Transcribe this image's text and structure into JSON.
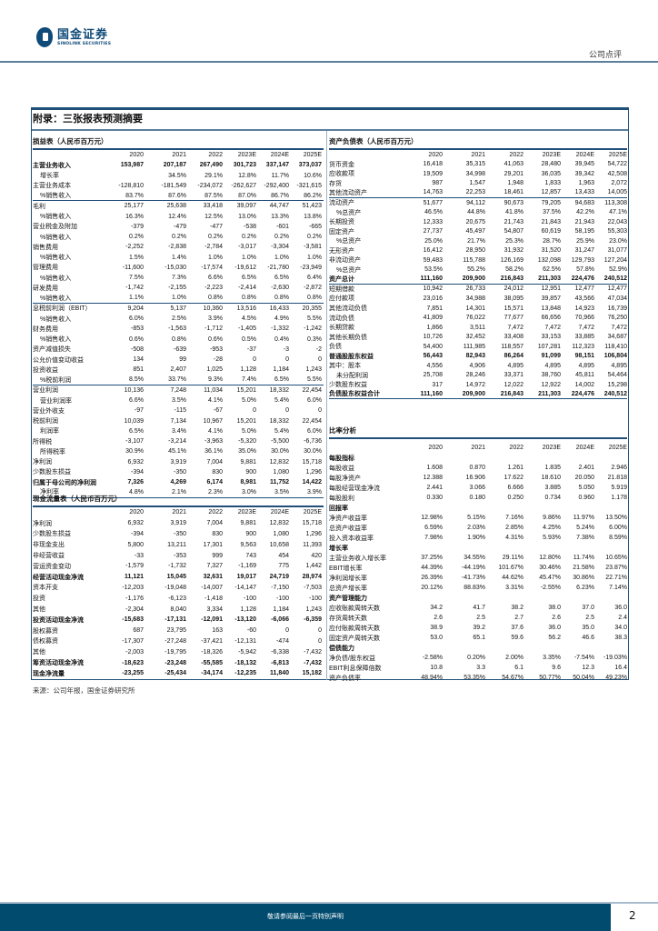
{
  "header": {
    "logo_cn": "国金证券",
    "logo_en": "SINOLINK SECURITIES",
    "doc_type": "公司点评"
  },
  "appendix_title": "附录：三张报表预测摘要",
  "years": [
    "2020",
    "2021",
    "2022",
    "2023E",
    "2024E",
    "2025E"
  ],
  "income": {
    "title": "损益表（人民币百万元）",
    "rows": [
      {
        "label": "主营业务收入",
        "values": [
          "153,987",
          "207,187",
          "267,490",
          "301,723",
          "337,147",
          "373,037"
        ]
      },
      {
        "label": "增长率",
        "values": [
          "",
          "34.5%",
          "29.1%",
          "12.8%",
          "11.7%",
          "10.6%"
        ]
      },
      {
        "label": "主营业务成本",
        "values": [
          "-128,810",
          "-181,549",
          "-234,072",
          "-262,627",
          "-292,400",
          "-321,615"
        ]
      },
      {
        "label": "%销售收入",
        "values": [
          "83.7%",
          "87.6%",
          "87.5%",
          "87.0%",
          "86.7%",
          "86.2%"
        ]
      },
      {
        "label": "毛利",
        "values": [
          "25,177",
          "25,638",
          "33,418",
          "39,097",
          "44,747",
          "51,423"
        ]
      },
      {
        "label": "%销售收入",
        "values": [
          "16.3%",
          "12.4%",
          "12.5%",
          "13.0%",
          "13.3%",
          "13.8%"
        ]
      },
      {
        "label": "营业税金及附加",
        "values": [
          "-379",
          "-479",
          "-477",
          "-538",
          "-601",
          "-665"
        ]
      },
      {
        "label": "%销售收入",
        "values": [
          "0.2%",
          "0.2%",
          "0.2%",
          "0.2%",
          "0.2%",
          "0.2%"
        ]
      },
      {
        "label": "销售费用",
        "values": [
          "-2,252",
          "-2,838",
          "-2,784",
          "-3,017",
          "-3,304",
          "-3,581"
        ]
      },
      {
        "label": "%销售收入",
        "values": [
          "1.5%",
          "1.4%",
          "1.0%",
          "1.0%",
          "1.0%",
          "1.0%"
        ]
      },
      {
        "label": "管理费用",
        "values": [
          "-11,600",
          "-15,030",
          "-17,574",
          "-19,612",
          "-21,780",
          "-23,949"
        ]
      },
      {
        "label": "%销售收入",
        "values": [
          "7.5%",
          "7.3%",
          "6.6%",
          "6.5%",
          "6.5%",
          "6.4%"
        ]
      },
      {
        "label": "研发费用",
        "values": [
          "-1,742",
          "-2,155",
          "-2,223",
          "-2,414",
          "-2,630",
          "-2,872"
        ]
      },
      {
        "label": "%销售收入",
        "values": [
          "1.1%",
          "1.0%",
          "0.8%",
          "0.8%",
          "0.8%",
          "0.8%"
        ]
      },
      {
        "label": "息税前利润（EBIT）",
        "values": [
          "9,204",
          "5,137",
          "10,360",
          "13,516",
          "16,433",
          "20,355"
        ]
      },
      {
        "label": "%销售收入",
        "values": [
          "6.0%",
          "2.5%",
          "3.9%",
          "4.5%",
          "4.9%",
          "5.5%"
        ]
      },
      {
        "label": "财务费用",
        "values": [
          "-853",
          "-1,563",
          "-1,712",
          "-1,405",
          "-1,332",
          "-1,242"
        ]
      },
      {
        "label": "%销售收入",
        "values": [
          "0.6%",
          "0.8%",
          "0.6%",
          "0.5%",
          "0.4%",
          "0.3%"
        ]
      },
      {
        "label": "资产减值损失",
        "values": [
          "-508",
          "-639",
          "-953",
          "-37",
          "-3",
          "-2"
        ]
      },
      {
        "label": "公允价值变动收益",
        "values": [
          "134",
          "99",
          "-28",
          "0",
          "0",
          "0"
        ]
      },
      {
        "label": "投资收益",
        "values": [
          "851",
          "2,407",
          "1,025",
          "1,128",
          "1,184",
          "1,243"
        ]
      },
      {
        "label": "%税前利润",
        "values": [
          "8.5%",
          "33.7%",
          "9.3%",
          "7.4%",
          "6.5%",
          "5.5%"
        ]
      },
      {
        "label": "营业利润",
        "values": [
          "10,136",
          "7,248",
          "11,034",
          "15,201",
          "18,332",
          "22,454"
        ]
      },
      {
        "label": "营业利润率",
        "values": [
          "6.6%",
          "3.5%",
          "4.1%",
          "5.0%",
          "5.4%",
          "6.0%"
        ]
      },
      {
        "label": "营业外收支",
        "values": [
          "-97",
          "-115",
          "-67",
          "0",
          "0",
          "0"
        ]
      },
      {
        "label": "税前利润",
        "values": [
          "10,039",
          "7,134",
          "10,967",
          "15,201",
          "18,332",
          "22,454"
        ]
      },
      {
        "label": "利润率",
        "values": [
          "6.5%",
          "3.4%",
          "4.1%",
          "5.0%",
          "5.4%",
          "6.0%"
        ]
      },
      {
        "label": "所得税",
        "values": [
          "-3,107",
          "-3,214",
          "-3,963",
          "-5,320",
          "-5,500",
          "-6,736"
        ]
      },
      {
        "label": "所得税率",
        "values": [
          "30.9%",
          "45.1%",
          "36.1%",
          "35.0%",
          "30.0%",
          "30.0%"
        ]
      },
      {
        "label": "净利润",
        "values": [
          "6,932",
          "3,919",
          "7,004",
          "9,881",
          "12,832",
          "15,718"
        ]
      },
      {
        "label": "少数股东损益",
        "values": [
          "-394",
          "-350",
          "830",
          "900",
          "1,080",
          "1,296"
        ]
      },
      {
        "label": "归属于母公司的净利润",
        "values": [
          "7,326",
          "4,269",
          "6,174",
          "8,981",
          "11,752",
          "14,422"
        ]
      },
      {
        "label": "净利率",
        "values": [
          "4.8%",
          "2.1%",
          "2.3%",
          "3.0%",
          "3.5%",
          "3.9%"
        ]
      }
    ]
  },
  "balance": {
    "title": "资产负债表（人民币百万元）",
    "rows": [
      {
        "label": "货币资金",
        "values": [
          "16,418",
          "35,315",
          "41,063",
          "28,480",
          "39,945",
          "54,722"
        ]
      },
      {
        "label": "应收款项",
        "values": [
          "19,509",
          "34,998",
          "29,201",
          "36,035",
          "39,342",
          "42,508"
        ]
      },
      {
        "label": "存货",
        "values": [
          "987",
          "1,547",
          "1,948",
          "1,833",
          "1,963",
          "2,072"
        ]
      },
      {
        "label": "其他流动资产",
        "values": [
          "14,763",
          "22,253",
          "18,461",
          "12,857",
          "13,433",
          "14,005"
        ]
      },
      {
        "label": "流动资产",
        "values": [
          "51,677",
          "94,112",
          "90,673",
          "79,205",
          "94,683",
          "113,308"
        ]
      },
      {
        "label": "%总资产",
        "values": [
          "46.5%",
          "44.8%",
          "41.8%",
          "37.5%",
          "42.2%",
          "47.1%"
        ]
      },
      {
        "label": "长期投资",
        "values": [
          "12,333",
          "20,675",
          "21,743",
          "21,843",
          "21,943",
          "22,043"
        ]
      },
      {
        "label": "固定资产",
        "values": [
          "27,737",
          "45,497",
          "54,807",
          "60,619",
          "58,195",
          "55,303"
        ]
      },
      {
        "label": "%总资产",
        "values": [
          "25.0%",
          "21.7%",
          "25.3%",
          "28.7%",
          "25.9%",
          "23.0%"
        ]
      },
      {
        "label": "无形资产",
        "values": [
          "16,412",
          "28,950",
          "31,932",
          "31,520",
          "31,247",
          "31,077"
        ]
      },
      {
        "label": "非流动资产",
        "values": [
          "59,483",
          "115,788",
          "126,169",
          "132,098",
          "129,793",
          "127,204"
        ]
      },
      {
        "label": "%总资产",
        "values": [
          "53.5%",
          "55.2%",
          "58.2%",
          "62.5%",
          "57.8%",
          "52.9%"
        ]
      },
      {
        "label": "资产总计",
        "values": [
          "111,160",
          "209,900",
          "216,843",
          "211,303",
          "224,476",
          "240,512"
        ]
      },
      {
        "label": "短期借款",
        "values": [
          "10,942",
          "26,733",
          "24,012",
          "12,951",
          "12,477",
          "12,477"
        ]
      },
      {
        "label": "应付款项",
        "values": [
          "23,016",
          "34,988",
          "38,095",
          "39,857",
          "43,566",
          "47,034"
        ]
      },
      {
        "label": "其他流动负债",
        "values": [
          "7,851",
          "14,301",
          "15,571",
          "13,848",
          "14,923",
          "16,739"
        ]
      },
      {
        "label": "流动负债",
        "values": [
          "41,809",
          "76,022",
          "77,677",
          "66,656",
          "70,966",
          "76,250"
        ]
      },
      {
        "label": "长期贷款",
        "values": [
          "1,866",
          "3,511",
          "7,472",
          "7,472",
          "7,472",
          "7,472"
        ]
      },
      {
        "label": "其他长期负债",
        "values": [
          "10,726",
          "32,452",
          "33,408",
          "33,153",
          "33,885",
          "34,687"
        ]
      },
      {
        "label": "负债",
        "values": [
          "54,400",
          "111,985",
          "118,557",
          "107,281",
          "112,323",
          "118,410"
        ]
      },
      {
        "label": "普通股股东权益",
        "values": [
          "56,443",
          "82,943",
          "86,264",
          "91,099",
          "98,151",
          "106,804"
        ]
      },
      {
        "label": "其中：股本",
        "values": [
          "4,556",
          "4,906",
          "4,895",
          "4,895",
          "4,895",
          "4,895"
        ]
      },
      {
        "label": "未分配利润",
        "values": [
          "25,708",
          "28,246",
          "33,371",
          "38,760",
          "45,811",
          "54,464"
        ]
      },
      {
        "label": "少数股东权益",
        "values": [
          "317",
          "14,972",
          "12,022",
          "12,922",
          "14,002",
          "15,298"
        ]
      },
      {
        "label": "负债股东权益合计",
        "values": [
          "111,160",
          "209,900",
          "216,843",
          "211,303",
          "224,476",
          "240,512"
        ]
      }
    ]
  },
  "ratios": {
    "title": "比率分析",
    "rows": [
      {
        "label": "每股指标",
        "values": [
          "",
          "",
          "",
          "",
          "",
          ""
        ]
      },
      {
        "label": "每股收益",
        "values": [
          "1.608",
          "0.870",
          "1.261",
          "1.835",
          "2.401",
          "2.946"
        ]
      },
      {
        "label": "每股净资产",
        "values": [
          "12.388",
          "16.906",
          "17.622",
          "18.610",
          "20.050",
          "21.818"
        ]
      },
      {
        "label": "每股经营现金净流",
        "values": [
          "2.441",
          "3.066",
          "6.666",
          "3.885",
          "5.050",
          "5.919"
        ]
      },
      {
        "label": "每股股利",
        "values": [
          "0.330",
          "0.180",
          "0.250",
          "0.734",
          "0.960",
          "1.178"
        ]
      },
      {
        "label": "回报率",
        "values": [
          "",
          "",
          "",
          "",
          "",
          ""
        ]
      },
      {
        "label": "净资产收益率",
        "values": [
          "12.98%",
          "5.15%",
          "7.16%",
          "9.86%",
          "11.97%",
          "13.50%"
        ]
      },
      {
        "label": "总资产收益率",
        "values": [
          "6.59%",
          "2.03%",
          "2.85%",
          "4.25%",
          "5.24%",
          "6.00%"
        ]
      },
      {
        "label": "投入资本收益率",
        "values": [
          "7.98%",
          "1.90%",
          "4.31%",
          "5.93%",
          "7.38%",
          "8.59%"
        ]
      },
      {
        "label": "增长率",
        "values": [
          "",
          "",
          "",
          "",
          "",
          ""
        ]
      },
      {
        "label": "主营业务收入增长率",
        "values": [
          "37.25%",
          "34.55%",
          "29.11%",
          "12.80%",
          "11.74%",
          "10.65%"
        ]
      },
      {
        "label": "EBIT增长率",
        "values": [
          "44.39%",
          "-44.19%",
          "101.67%",
          "30.46%",
          "21.58%",
          "23.87%"
        ]
      },
      {
        "label": "净利润增长率",
        "values": [
          "26.39%",
          "-41.73%",
          "44.62%",
          "45.47%",
          "30.86%",
          "22.71%"
        ]
      },
      {
        "label": "总资产增长率",
        "values": [
          "20.12%",
          "88.83%",
          "3.31%",
          "-2.55%",
          "6.23%",
          "7.14%"
        ]
      },
      {
        "label": "资产管理能力",
        "values": [
          "",
          "",
          "",
          "",
          "",
          ""
        ]
      },
      {
        "label": "应收账款周转天数",
        "values": [
          "34.2",
          "41.7",
          "38.2",
          "38.0",
          "37.0",
          "36.0"
        ]
      },
      {
        "label": "存货周转天数",
        "values": [
          "2.6",
          "2.5",
          "2.7",
          "2.6",
          "2.5",
          "2.4"
        ]
      },
      {
        "label": "应付账款周转天数",
        "values": [
          "38.9",
          "39.2",
          "37.6",
          "36.0",
          "35.0",
          "34.0"
        ]
      },
      {
        "label": "固定资产周转天数",
        "values": [
          "53.0",
          "65.1",
          "59.6",
          "56.2",
          "46.6",
          "38.3"
        ]
      },
      {
        "label": "偿债能力",
        "values": [
          "",
          "",
          "",
          "",
          "",
          ""
        ]
      },
      {
        "label": "净负债/股东权益",
        "values": [
          "-2.58%",
          "0.20%",
          "2.00%",
          "3.35%",
          "-7.54%",
          "-19.03%"
        ]
      },
      {
        "label": "EBIT利息保障倍数",
        "values": [
          "10.8",
          "3.3",
          "6.1",
          "9.6",
          "12.3",
          "16.4"
        ]
      },
      {
        "label": "资产负债率",
        "values": [
          "48.94%",
          "53.35%",
          "54.67%",
          "50.77%",
          "50.04%",
          "49.23%"
        ]
      }
    ]
  },
  "cashflow": {
    "title": "现金流量表（人民币百万元）",
    "rows": [
      {
        "label": "净利润",
        "values": [
          "6,932",
          "3,919",
          "7,004",
          "9,881",
          "12,832",
          "15,718"
        ]
      },
      {
        "label": "少数股东损益",
        "values": [
          "-394",
          "-350",
          "830",
          "900",
          "1,080",
          "1,296"
        ]
      },
      {
        "label": "非现金支出",
        "values": [
          "5,800",
          "13,211",
          "17,301",
          "9,563",
          "10,658",
          "11,393"
        ]
      },
      {
        "label": "非经营收益",
        "values": [
          "-33",
          "-353",
          "999",
          "743",
          "454",
          "420"
        ]
      },
      {
        "label": "营运资金变动",
        "values": [
          "-1,579",
          "-1,732",
          "7,327",
          "-1,169",
          "775",
          "1,442"
        ]
      },
      {
        "label": "经营活动现金净流",
        "values": [
          "11,121",
          "15,045",
          "32,631",
          "19,017",
          "24,719",
          "28,974"
        ]
      },
      {
        "label": "资本开支",
        "values": [
          "-12,203",
          "-19,048",
          "-14,007",
          "-14,147",
          "-7,150",
          "-7,503"
        ]
      },
      {
        "label": "投资",
        "values": [
          "-1,176",
          "-6,123",
          "-1,418",
          "-100",
          "-100",
          "-100"
        ]
      },
      {
        "label": "其他",
        "values": [
          "-2,304",
          "8,040",
          "3,334",
          "1,128",
          "1,184",
          "1,243"
        ]
      },
      {
        "label": "投资活动现金净流",
        "values": [
          "-15,683",
          "-17,131",
          "-12,091",
          "-13,120",
          "-6,066",
          "-6,359"
        ]
      },
      {
        "label": "股权募资",
        "values": [
          "687",
          "23,795",
          "163",
          "-60",
          "0",
          "0"
        ]
      },
      {
        "label": "债权募资",
        "values": [
          "-17,307",
          "-27,248",
          "-37,421",
          "-12,131",
          "-474",
          "0"
        ]
      },
      {
        "label": "其他",
        "values": [
          "-2,003",
          "-19,795",
          "-18,326",
          "-5,942",
          "-6,338",
          "-7,432"
        ]
      },
      {
        "label": "筹资活动现金净流",
        "values": [
          "-18,623",
          "-23,248",
          "-55,585",
          "-18,132",
          "-6,813",
          "-7,432"
        ]
      },
      {
        "label": "现金净流量",
        "values": [
          "-23,255",
          "-25,434",
          "-34,174",
          "-12,235",
          "11,840",
          "15,182"
        ]
      }
    ]
  },
  "source": "来源：公司年报，国金证券研究所",
  "footer": {
    "text": "敬请参阅最后一页特别声明",
    "page": "2"
  },
  "colors": {
    "brand": "#0f4a78",
    "footer": "#004b6e",
    "rule": "#1f4e79"
  }
}
